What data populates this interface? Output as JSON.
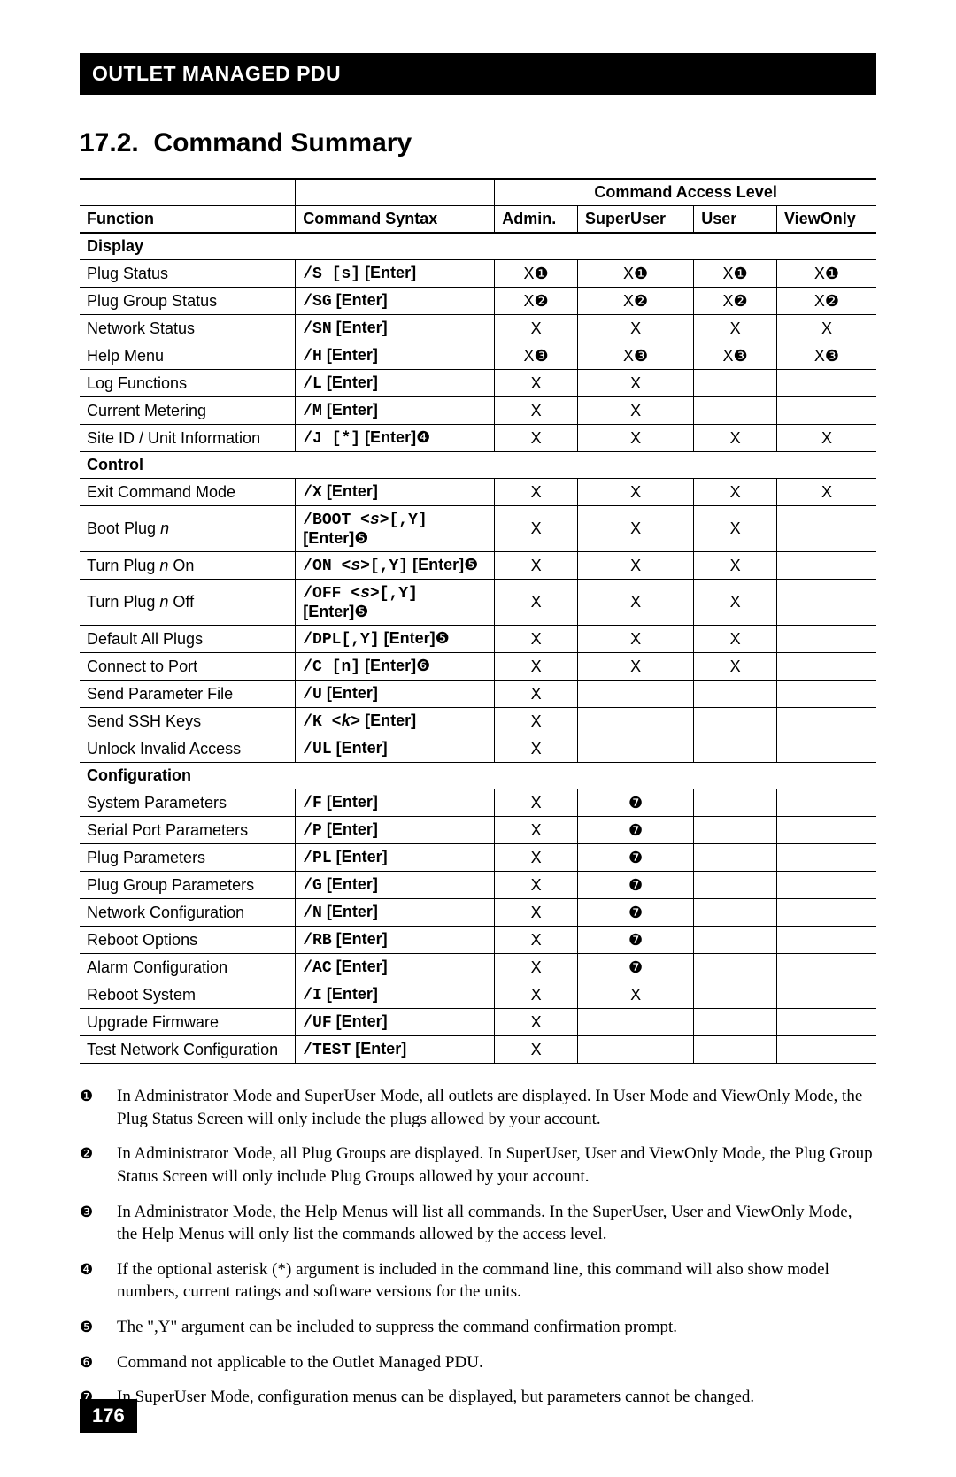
{
  "header_bar": "OUTLET MANAGED PDU",
  "section_number": "17.2.",
  "section_title": "Command Summary",
  "table": {
    "span_header": "Command Access Level",
    "columns": {
      "function": "Function",
      "syntax": "Command Syntax",
      "admin": "Admin.",
      "superuser": "SuperUser",
      "user": "User",
      "viewonly": "ViewOnly"
    },
    "sections": [
      {
        "title": "Display",
        "rows": [
          {
            "fn": "Plug Status",
            "syntax": [
              {
                "t": "code",
                "v": "/S [s]"
              },
              {
                "t": "enter",
                "v": " [Enter]"
              }
            ],
            "admin": "X❶",
            "su": "X❶",
            "user": "X❶",
            "vo": "X❶"
          },
          {
            "fn": "Plug Group Status",
            "syntax": [
              {
                "t": "code",
                "v": "/SG"
              },
              {
                "t": "enter",
                "v": " [Enter]"
              }
            ],
            "admin": "X❷",
            "su": "X❷",
            "user": "X❷",
            "vo": "X❷"
          },
          {
            "fn": "Network Status",
            "syntax": [
              {
                "t": "code",
                "v": "/SN"
              },
              {
                "t": "enter",
                "v": " [Enter]"
              }
            ],
            "admin": "X",
            "su": "X",
            "user": "X",
            "vo": "X"
          },
          {
            "fn": "Help Menu",
            "syntax": [
              {
                "t": "code",
                "v": "/H"
              },
              {
                "t": "enter",
                "v": " [Enter]"
              }
            ],
            "admin": "X❸",
            "su": "X❸",
            "user": "X❸",
            "vo": "X❸"
          },
          {
            "fn": "Log Functions",
            "syntax": [
              {
                "t": "code",
                "v": "/L"
              },
              {
                "t": "enter",
                "v": " [Enter]"
              }
            ],
            "admin": "X",
            "su": "X",
            "user": "",
            "vo": ""
          },
          {
            "fn": "Current Metering",
            "syntax": [
              {
                "t": "code",
                "v": "/M"
              },
              {
                "t": "enter",
                "v": " [Enter]"
              }
            ],
            "admin": "X",
            "su": "X",
            "user": "",
            "vo": ""
          },
          {
            "fn": "Site ID / Unit Information",
            "syntax": [
              {
                "t": "code",
                "v": "/J [*]"
              },
              {
                "t": "enter",
                "v": " [Enter]"
              },
              {
                "t": "note",
                "v": "❹"
              }
            ],
            "admin": "X",
            "su": "X",
            "user": "X",
            "vo": "X"
          }
        ]
      },
      {
        "title": "Control",
        "rows": [
          {
            "fn": "Exit Command Mode",
            "syntax": [
              {
                "t": "code",
                "v": "/X"
              },
              {
                "t": "enter",
                "v": " [Enter]"
              }
            ],
            "admin": "X",
            "su": "X",
            "user": "X",
            "vo": "X"
          },
          {
            "fn": "Boot Plug ",
            "fn_ital": "n",
            "syntax": [
              {
                "t": "code",
                "v": "/BOOT <"
              },
              {
                "t": "ital",
                "v": "s"
              },
              {
                "t": "code",
                "v": ">[,Y]"
              },
              {
                "t": "enter",
                "v": " [Enter]"
              },
              {
                "t": "note",
                "v": "❺"
              }
            ],
            "admin": "X",
            "su": "X",
            "user": "X",
            "vo": ""
          },
          {
            "fn": "Turn Plug ",
            "fn_ital": "n",
            "fn_suffix": " On",
            "syntax": [
              {
                "t": "code",
                "v": "/ON <"
              },
              {
                "t": "ital",
                "v": "s"
              },
              {
                "t": "code",
                "v": ">[,Y]"
              },
              {
                "t": "enter",
                "v": " [Enter]"
              },
              {
                "t": "note",
                "v": "❺"
              }
            ],
            "admin": "X",
            "su": "X",
            "user": "X",
            "vo": ""
          },
          {
            "fn": "Turn Plug ",
            "fn_ital": "n",
            "fn_suffix": " Off",
            "syntax": [
              {
                "t": "code",
                "v": "/OFF <"
              },
              {
                "t": "ital",
                "v": "s"
              },
              {
                "t": "code",
                "v": ">[,Y]"
              },
              {
                "t": "enter",
                "v": " [Enter]"
              },
              {
                "t": "note",
                "v": "❺"
              }
            ],
            "admin": "X",
            "su": "X",
            "user": "X",
            "vo": ""
          },
          {
            "fn": "Default All Plugs",
            "syntax": [
              {
                "t": "code",
                "v": "/DPL[,Y]"
              },
              {
                "t": "enter",
                "v": " [Enter]"
              },
              {
                "t": "note",
                "v": "❺"
              }
            ],
            "admin": "X",
            "su": "X",
            "user": "X",
            "vo": ""
          },
          {
            "fn": "Connect to Port",
            "syntax": [
              {
                "t": "code",
                "v": "/C [n]"
              },
              {
                "t": "enter",
                "v": " [Enter]"
              },
              {
                "t": "note",
                "v": "❻"
              }
            ],
            "admin": "X",
            "su": "X",
            "user": "X",
            "vo": ""
          },
          {
            "fn": "Send Parameter File",
            "syntax": [
              {
                "t": "code",
                "v": "/U"
              },
              {
                "t": "enter",
                "v": " [Enter]"
              }
            ],
            "admin": "X",
            "su": "",
            "user": "",
            "vo": ""
          },
          {
            "fn": "Send SSH Keys",
            "syntax": [
              {
                "t": "code",
                "v": "/K <"
              },
              {
                "t": "ital",
                "v": "k"
              },
              {
                "t": "code",
                "v": ">"
              },
              {
                "t": "enter",
                "v": " [Enter]"
              }
            ],
            "admin": "X",
            "su": "",
            "user": "",
            "vo": ""
          },
          {
            "fn": "Unlock Invalid Access",
            "syntax": [
              {
                "t": "code",
                "v": "/UL"
              },
              {
                "t": "enter",
                "v": " [Enter]"
              }
            ],
            "admin": "X",
            "su": "",
            "user": "",
            "vo": ""
          }
        ]
      },
      {
        "title": "Configuration",
        "rows": [
          {
            "fn": "System Parameters",
            "syntax": [
              {
                "t": "code",
                "v": "/F"
              },
              {
                "t": "enter",
                "v": " [Enter]"
              }
            ],
            "admin": "X",
            "su": "❼",
            "user": "",
            "vo": ""
          },
          {
            "fn": "Serial Port Parameters",
            "syntax": [
              {
                "t": "code",
                "v": "/P"
              },
              {
                "t": "enter",
                "v": " [Enter]"
              }
            ],
            "admin": "X",
            "su": "❼",
            "user": "",
            "vo": ""
          },
          {
            "fn": "Plug Parameters",
            "syntax": [
              {
                "t": "code",
                "v": "/PL"
              },
              {
                "t": "enter",
                "v": " [Enter]"
              }
            ],
            "admin": "X",
            "su": "❼",
            "user": "",
            "vo": ""
          },
          {
            "fn": "Plug Group Parameters",
            "syntax": [
              {
                "t": "code",
                "v": "/G"
              },
              {
                "t": "enter",
                "v": " [Enter]"
              }
            ],
            "admin": "X",
            "su": "❼",
            "user": "",
            "vo": ""
          },
          {
            "fn": "Network Configuration",
            "syntax": [
              {
                "t": "code",
                "v": "/N"
              },
              {
                "t": "enter",
                "v": " [Enter]"
              }
            ],
            "admin": "X",
            "su": "❼",
            "user": "",
            "vo": ""
          },
          {
            "fn": "Reboot Options",
            "syntax": [
              {
                "t": "code",
                "v": "/RB"
              },
              {
                "t": "enter",
                "v": " [Enter]"
              }
            ],
            "admin": "X",
            "su": "❼",
            "user": "",
            "vo": ""
          },
          {
            "fn": "Alarm Configuration",
            "syntax": [
              {
                "t": "code",
                "v": "/AC"
              },
              {
                "t": "enter",
                "v": " [Enter]"
              }
            ],
            "admin": "X",
            "su": "❼",
            "user": "",
            "vo": ""
          },
          {
            "fn": "Reboot System",
            "syntax": [
              {
                "t": "code",
                "v": "/I"
              },
              {
                "t": "enter",
                "v": " [Enter]"
              }
            ],
            "admin": "X",
            "su": "X",
            "user": "",
            "vo": ""
          },
          {
            "fn": "Upgrade Firmware",
            "syntax": [
              {
                "t": "code",
                "v": "/UF"
              },
              {
                "t": "enter",
                "v": " [Enter]"
              }
            ],
            "admin": "X",
            "su": "",
            "user": "",
            "vo": ""
          },
          {
            "fn": "Test Network Configuration",
            "syntax": [
              {
                "t": "code",
                "v": "/TEST"
              },
              {
                "t": "enter",
                "v": " [Enter]"
              }
            ],
            "admin": "X",
            "su": "",
            "user": "",
            "vo": ""
          }
        ]
      }
    ]
  },
  "notes": [
    {
      "num": "❶",
      "text": "In Administrator Mode and SuperUser Mode, all outlets are displayed.  In User Mode and ViewOnly Mode, the Plug Status Screen will only include the plugs allowed by your account."
    },
    {
      "num": "❷",
      "text": "In Administrator Mode, all Plug Groups are displayed.  In SuperUser, User and ViewOnly Mode, the Plug Group Status Screen will only include Plug Groups allowed by your account."
    },
    {
      "num": "❸",
      "text": "In Administrator Mode, the Help Menus will list all commands.  In the SuperUser, User and ViewOnly Mode, the Help Menus will only list the commands allowed by the access level."
    },
    {
      "num": "❹",
      "text": "If the optional asterisk (*) argument is included in the command line, this command will also show model numbers, current ratings and software versions for the units."
    },
    {
      "num": "❺",
      "text": "The \",Y\" argument can be included  to suppress the command confirmation prompt."
    },
    {
      "num": "❻",
      "text": "Command not applicable to the Outlet Managed PDU."
    },
    {
      "num": "❼",
      "text": "In SuperUser Mode, configuration menus can be displayed, but parameters cannot be changed."
    }
  ],
  "page_number": "176"
}
